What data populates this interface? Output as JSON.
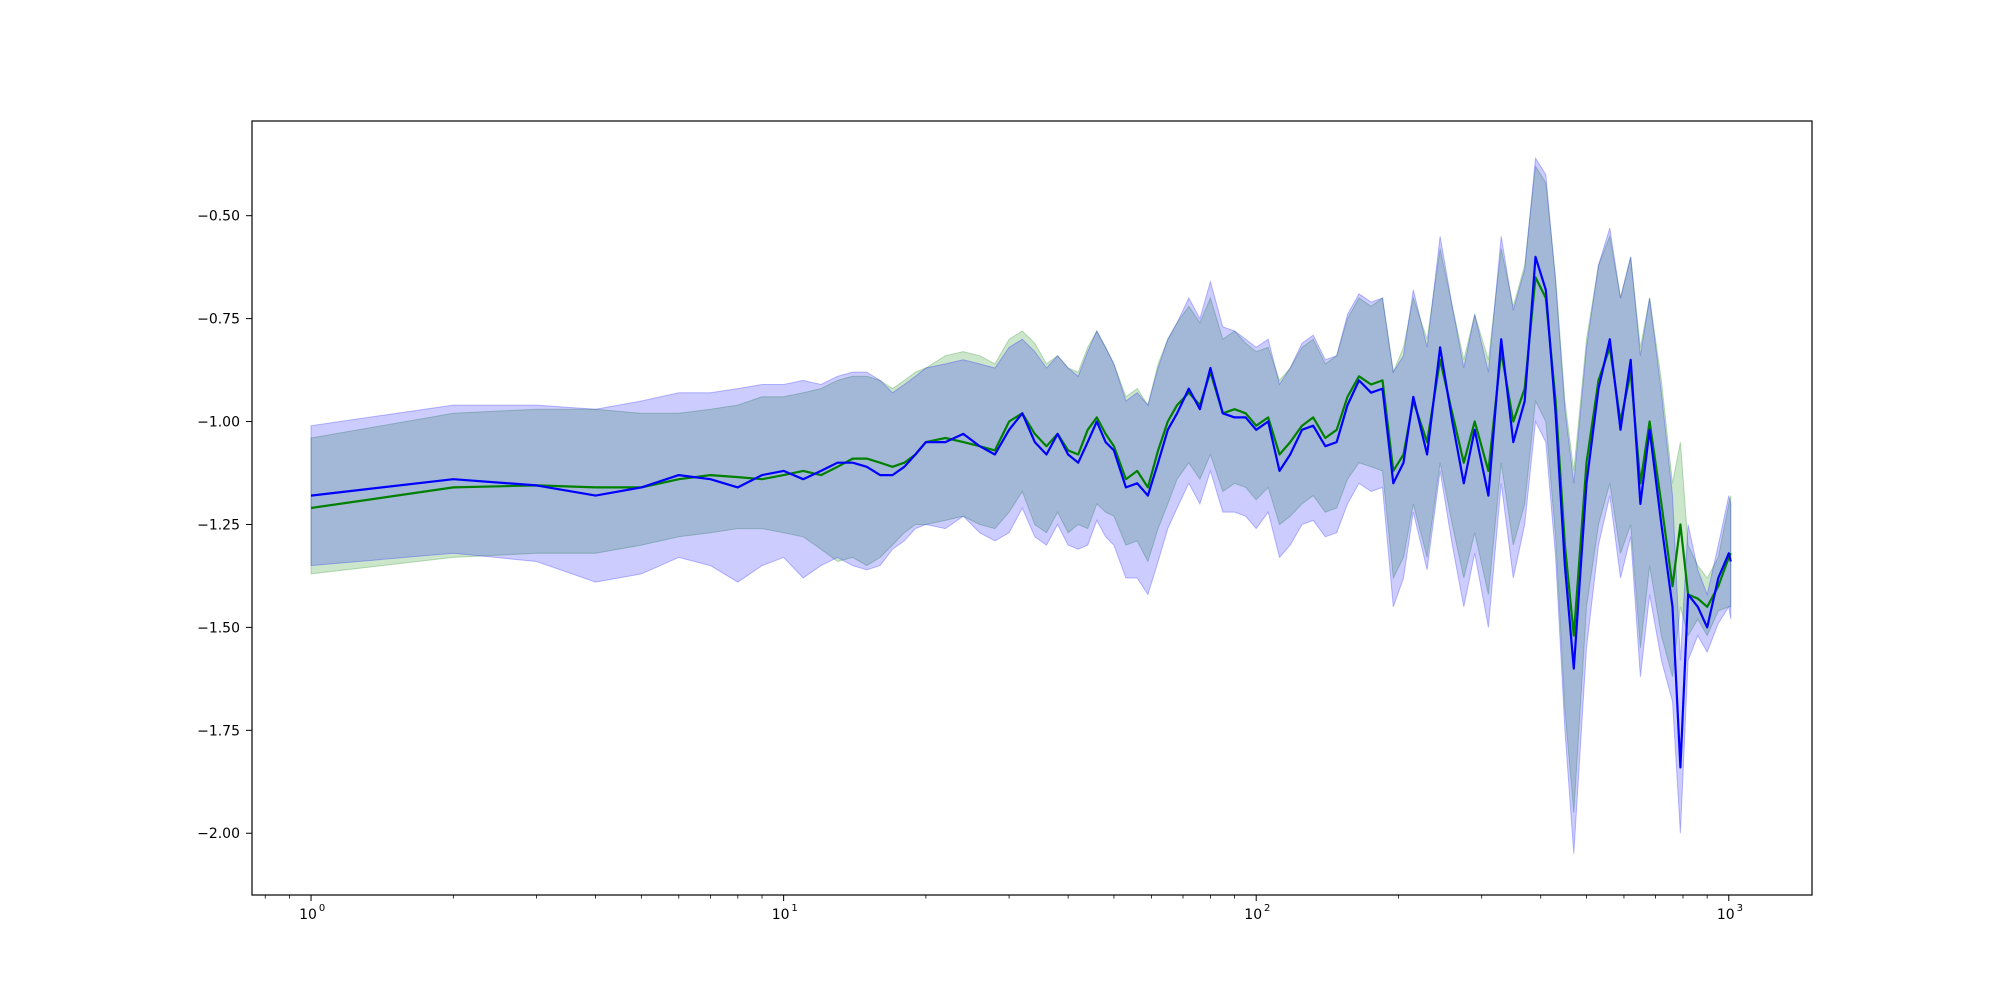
{
  "chart_data": {
    "type": "line",
    "title": "",
    "xlabel": "",
    "ylabel": "",
    "xscale": "log",
    "xlim": [
      0.75,
      1500
    ],
    "ylim": [
      -2.15,
      -0.27
    ],
    "grid": false,
    "x_ticks": [
      {
        "value": 1,
        "label": "10",
        "exponent": "0"
      },
      {
        "value": 10,
        "label": "10",
        "exponent": "1"
      },
      {
        "value": 100,
        "label": "10",
        "exponent": "2"
      },
      {
        "value": 1000,
        "label": "10",
        "exponent": "3"
      }
    ],
    "y_ticks": [
      {
        "value": -0.5,
        "label": "−0.50"
      },
      {
        "value": -0.75,
        "label": "−0.75"
      },
      {
        "value": -1.0,
        "label": "−1.00"
      },
      {
        "value": -1.25,
        "label": "−1.25"
      },
      {
        "value": -1.5,
        "label": "−1.50"
      },
      {
        "value": -1.75,
        "label": "−1.75"
      },
      {
        "value": -2.0,
        "label": "−2.00"
      }
    ],
    "series": [
      {
        "color": "#008000",
        "band_color": "#008000",
        "x": [
          1,
          2,
          3,
          4,
          5,
          6,
          7,
          8,
          9,
          10,
          11,
          12,
          13,
          14,
          15,
          16,
          17,
          18,
          19,
          20,
          22,
          24,
          26,
          28,
          30,
          32,
          34,
          36,
          38,
          40,
          42,
          44,
          46,
          48,
          50,
          53,
          56,
          59,
          62,
          65,
          68,
          72,
          76,
          80,
          85,
          90,
          95,
          100,
          106,
          112,
          118,
          125,
          132,
          140,
          148,
          156,
          165,
          175,
          185,
          195,
          205,
          215,
          230,
          245,
          260,
          275,
          290,
          310,
          330,
          350,
          370,
          390,
          410,
          430,
          450,
          470,
          500,
          530,
          560,
          590,
          620,
          650,
          680,
          720,
          760,
          790,
          820,
          860,
          900,
          950,
          1000,
          1010
        ],
        "mean": [
          -1.21,
          -1.16,
          -1.155,
          -1.16,
          -1.16,
          -1.14,
          -1.13,
          -1.135,
          -1.14,
          -1.13,
          -1.12,
          -1.13,
          -1.11,
          -1.09,
          -1.09,
          -1.1,
          -1.11,
          -1.1,
          -1.08,
          -1.05,
          -1.04,
          -1.05,
          -1.06,
          -1.07,
          -1.0,
          -0.98,
          -1.03,
          -1.06,
          -1.03,
          -1.07,
          -1.08,
          -1.02,
          -0.99,
          -1.03,
          -1.06,
          -1.14,
          -1.12,
          -1.16,
          -1.07,
          -1.0,
          -0.96,
          -0.93,
          -0.96,
          -0.88,
          -0.98,
          -0.97,
          -0.98,
          -1.01,
          -0.99,
          -1.08,
          -1.05,
          -1.01,
          -0.99,
          -1.04,
          -1.02,
          -0.94,
          -0.89,
          -0.91,
          -0.9,
          -1.12,
          -1.08,
          -0.95,
          -1.05,
          -0.85,
          -0.98,
          -1.1,
          -1.0,
          -1.12,
          -0.83,
          -1.0,
          -0.92,
          -0.65,
          -0.7,
          -0.95,
          -1.3,
          -1.52,
          -1.1,
          -0.9,
          -0.82,
          -1.0,
          -0.88,
          -1.15,
          -1.0,
          -1.2,
          -1.4,
          -1.25,
          -1.42,
          -1.43,
          -1.45,
          -1.4,
          -1.33,
          -1.32
        ],
        "lower": [
          -1.37,
          -1.33,
          -1.32,
          -1.32,
          -1.3,
          -1.28,
          -1.27,
          -1.26,
          -1.26,
          -1.27,
          -1.28,
          -1.31,
          -1.34,
          -1.33,
          -1.35,
          -1.33,
          -1.3,
          -1.27,
          -1.25,
          -1.25,
          -1.24,
          -1.23,
          -1.25,
          -1.26,
          -1.22,
          -1.17,
          -1.25,
          -1.27,
          -1.22,
          -1.27,
          -1.25,
          -1.26,
          -1.2,
          -1.22,
          -1.23,
          -1.3,
          -1.29,
          -1.34,
          -1.26,
          -1.2,
          -1.14,
          -1.1,
          -1.14,
          -1.08,
          -1.17,
          -1.15,
          -1.16,
          -1.19,
          -1.16,
          -1.25,
          -1.23,
          -1.2,
          -1.18,
          -1.22,
          -1.21,
          -1.14,
          -1.1,
          -1.11,
          -1.12,
          -1.38,
          -1.33,
          -1.2,
          -1.33,
          -1.1,
          -1.25,
          -1.38,
          -1.27,
          -1.42,
          -1.1,
          -1.3,
          -1.2,
          -0.95,
          -1.0,
          -1.28,
          -1.7,
          -1.95,
          -1.45,
          -1.25,
          -1.15,
          -1.32,
          -1.25,
          -1.55,
          -1.35,
          -1.52,
          -1.62,
          -1.45,
          -1.52,
          -1.48,
          -1.52,
          -1.46,
          -1.45,
          -1.45
        ],
        "upper": [
          -1.04,
          -0.98,
          -0.97,
          -0.97,
          -0.98,
          -0.98,
          -0.97,
          -0.96,
          -0.94,
          -0.94,
          -0.93,
          -0.92,
          -0.9,
          -0.89,
          -0.89,
          -0.9,
          -0.92,
          -0.9,
          -0.88,
          -0.87,
          -0.84,
          -0.83,
          -0.84,
          -0.86,
          -0.8,
          -0.78,
          -0.81,
          -0.86,
          -0.84,
          -0.87,
          -0.88,
          -0.82,
          -0.78,
          -0.82,
          -0.86,
          -0.94,
          -0.92,
          -0.96,
          -0.86,
          -0.8,
          -0.76,
          -0.72,
          -0.76,
          -0.7,
          -0.8,
          -0.78,
          -0.81,
          -0.83,
          -0.82,
          -0.9,
          -0.87,
          -0.82,
          -0.8,
          -0.86,
          -0.84,
          -0.75,
          -0.7,
          -0.72,
          -0.7,
          -0.88,
          -0.82,
          -0.7,
          -0.8,
          -0.58,
          -0.72,
          -0.85,
          -0.74,
          -0.85,
          -0.58,
          -0.72,
          -0.62,
          -0.38,
          -0.42,
          -0.65,
          -0.95,
          -1.12,
          -0.8,
          -0.62,
          -0.55,
          -0.7,
          -0.6,
          -0.82,
          -0.7,
          -0.9,
          -1.15,
          -1.05,
          -1.3,
          -1.35,
          -1.38,
          -1.33,
          -1.2,
          -1.18
        ]
      },
      {
        "color": "#0000ff",
        "band_color": "#0000ff",
        "x": [
          1,
          2,
          3,
          4,
          5,
          6,
          7,
          8,
          9,
          10,
          11,
          12,
          13,
          14,
          15,
          16,
          17,
          18,
          19,
          20,
          22,
          24,
          26,
          28,
          30,
          32,
          34,
          36,
          38,
          40,
          42,
          44,
          46,
          48,
          50,
          53,
          56,
          59,
          62,
          65,
          68,
          72,
          76,
          80,
          85,
          90,
          95,
          100,
          106,
          112,
          118,
          125,
          132,
          140,
          148,
          156,
          165,
          175,
          185,
          195,
          205,
          215,
          230,
          245,
          260,
          275,
          290,
          310,
          330,
          350,
          370,
          390,
          410,
          430,
          450,
          470,
          500,
          530,
          560,
          590,
          620,
          650,
          680,
          720,
          760,
          790,
          820,
          860,
          900,
          950,
          1000,
          1010
        ],
        "mean": [
          -1.18,
          -1.14,
          -1.155,
          -1.18,
          -1.16,
          -1.13,
          -1.14,
          -1.16,
          -1.13,
          -1.12,
          -1.14,
          -1.12,
          -1.1,
          -1.1,
          -1.11,
          -1.13,
          -1.13,
          -1.11,
          -1.08,
          -1.05,
          -1.05,
          -1.03,
          -1.06,
          -1.08,
          -1.02,
          -0.98,
          -1.05,
          -1.08,
          -1.03,
          -1.08,
          -1.1,
          -1.05,
          -1.0,
          -1.05,
          -1.07,
          -1.16,
          -1.15,
          -1.18,
          -1.1,
          -1.02,
          -0.98,
          -0.92,
          -0.97,
          -0.87,
          -0.98,
          -0.99,
          -0.99,
          -1.02,
          -1.0,
          -1.12,
          -1.08,
          -1.02,
          -1.01,
          -1.06,
          -1.05,
          -0.96,
          -0.9,
          -0.93,
          -0.92,
          -1.15,
          -1.1,
          -0.94,
          -1.08,
          -0.82,
          -1.0,
          -1.15,
          -1.02,
          -1.18,
          -0.8,
          -1.05,
          -0.95,
          -0.6,
          -0.68,
          -0.98,
          -1.35,
          -1.6,
          -1.15,
          -0.92,
          -0.8,
          -1.02,
          -0.85,
          -1.2,
          -1.02,
          -1.25,
          -1.45,
          -1.84,
          -1.42,
          -1.45,
          -1.5,
          -1.38,
          -1.32,
          -1.34
        ],
        "lower": [
          -1.35,
          -1.32,
          -1.34,
          -1.39,
          -1.37,
          -1.33,
          -1.35,
          -1.39,
          -1.35,
          -1.33,
          -1.38,
          -1.35,
          -1.33,
          -1.35,
          -1.36,
          -1.35,
          -1.31,
          -1.29,
          -1.26,
          -1.25,
          -1.26,
          -1.23,
          -1.27,
          -1.29,
          -1.27,
          -1.21,
          -1.28,
          -1.3,
          -1.25,
          -1.3,
          -1.31,
          -1.3,
          -1.24,
          -1.28,
          -1.3,
          -1.38,
          -1.38,
          -1.42,
          -1.34,
          -1.26,
          -1.21,
          -1.15,
          -1.2,
          -1.12,
          -1.22,
          -1.22,
          -1.23,
          -1.26,
          -1.22,
          -1.33,
          -1.3,
          -1.25,
          -1.24,
          -1.28,
          -1.27,
          -1.2,
          -1.15,
          -1.17,
          -1.16,
          -1.45,
          -1.38,
          -1.22,
          -1.36,
          -1.12,
          -1.3,
          -1.45,
          -1.32,
          -1.5,
          -1.15,
          -1.38,
          -1.25,
          -1.0,
          -1.05,
          -1.33,
          -1.75,
          -2.05,
          -1.55,
          -1.3,
          -1.18,
          -1.38,
          -1.28,
          -1.62,
          -1.42,
          -1.58,
          -1.68,
          -2.0,
          -1.58,
          -1.52,
          -1.56,
          -1.49,
          -1.45,
          -1.48
        ],
        "upper": [
          -1.01,
          -0.96,
          -0.96,
          -0.97,
          -0.95,
          -0.93,
          -0.93,
          -0.92,
          -0.91,
          -0.91,
          -0.9,
          -0.91,
          -0.89,
          -0.88,
          -0.88,
          -0.9,
          -0.93,
          -0.91,
          -0.89,
          -0.87,
          -0.86,
          -0.85,
          -0.86,
          -0.87,
          -0.82,
          -0.8,
          -0.83,
          -0.87,
          -0.84,
          -0.87,
          -0.89,
          -0.83,
          -0.78,
          -0.82,
          -0.86,
          -0.95,
          -0.93,
          -0.96,
          -0.87,
          -0.8,
          -0.76,
          -0.7,
          -0.75,
          -0.66,
          -0.77,
          -0.78,
          -0.8,
          -0.82,
          -0.8,
          -0.91,
          -0.87,
          -0.81,
          -0.79,
          -0.85,
          -0.84,
          -0.74,
          -0.69,
          -0.71,
          -0.7,
          -0.88,
          -0.84,
          -0.68,
          -0.82,
          -0.55,
          -0.72,
          -0.87,
          -0.74,
          -0.88,
          -0.55,
          -0.73,
          -0.63,
          -0.36,
          -0.4,
          -0.66,
          -0.97,
          -1.15,
          -0.82,
          -0.62,
          -0.53,
          -0.7,
          -0.6,
          -0.84,
          -0.7,
          -0.93,
          -1.18,
          -1.58,
          -1.25,
          -1.36,
          -1.42,
          -1.3,
          -1.18,
          -1.2
        ]
      }
    ]
  }
}
